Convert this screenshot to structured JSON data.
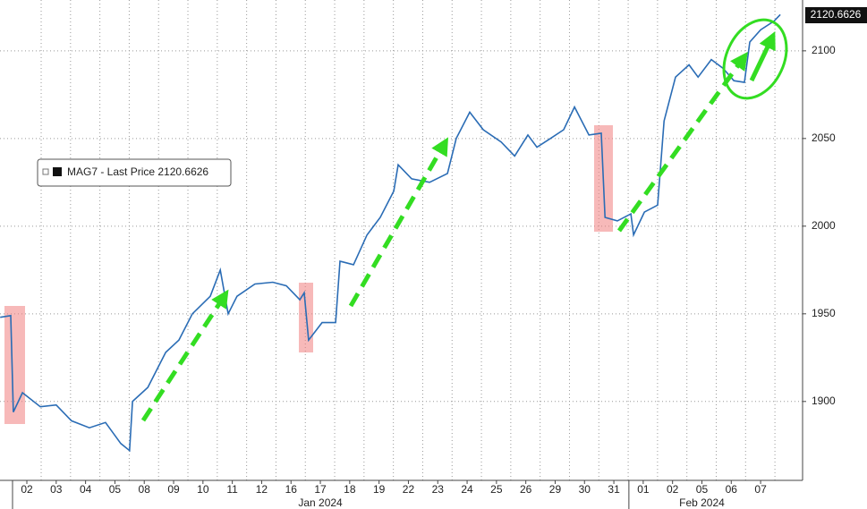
{
  "chart_data": {
    "type": "line",
    "series": [
      {
        "name": "MAG7 - Last Price 2120.6626",
        "color": "#2a6cb5",
        "x": [
          -0.91,
          -0.55,
          -0.46,
          -0.15,
          0.46,
          1.0,
          1.52,
          2.13,
          2.68,
          3.2,
          3.5,
          3.6,
          4.12,
          4.73,
          5.18,
          5.64,
          6.25,
          6.59,
          6.86,
          7.16,
          7.77,
          8.38,
          8.84,
          9.3,
          9.45,
          9.6,
          10.06,
          10.52,
          10.67,
          11.13,
          11.59,
          12.04,
          12.5,
          12.65,
          13.11,
          13.72,
          14.33,
          14.63,
          15.09,
          15.55,
          16.16,
          16.62,
          17.07,
          17.38,
          17.84,
          18.29,
          18.66,
          19.15,
          19.57,
          19.7,
          20.12,
          20.58,
          20.67,
          21.04,
          21.49,
          21.71,
          22.1,
          22.56,
          22.87,
          23.32,
          23.72,
          24.09,
          24.45,
          24.63,
          25.0,
          25.46,
          25.67
        ],
        "values": [
          1948,
          1949,
          1894,
          1905,
          1897,
          1898,
          1889,
          1885,
          1888,
          1876,
          1872,
          1900,
          1908,
          1928,
          1935,
          1950,
          1960,
          1975,
          1950,
          1960,
          1967,
          1968,
          1966,
          1958,
          1962,
          1935,
          1945,
          1945,
          1980,
          1978,
          1995,
          2005,
          2020,
          2035,
          2027,
          2025,
          2030,
          2050,
          2065,
          2055,
          2048,
          2040,
          2052,
          2045,
          2050,
          2055,
          2068,
          2052,
          2053,
          2005,
          2003,
          2007,
          1995,
          2008,
          2012,
          2060,
          2085,
          2092,
          2085,
          2095,
          2090,
          2083,
          2082,
          2105,
          2112,
          2117,
          2120.6626
        ]
      }
    ],
    "last_price": 2120.6626,
    "xlim": [
      -0.915,
      26.43
    ],
    "xticks": [
      {
        "value": 0,
        "label": "02"
      },
      {
        "value": 1,
        "label": "03"
      },
      {
        "value": 2,
        "label": "04"
      },
      {
        "value": 3,
        "label": "05"
      },
      {
        "value": 4,
        "label": "08"
      },
      {
        "value": 5,
        "label": "09"
      },
      {
        "value": 6,
        "label": "10"
      },
      {
        "value": 7,
        "label": "11"
      },
      {
        "value": 8,
        "label": "12"
      },
      {
        "value": 9,
        "label": "16"
      },
      {
        "value": 10,
        "label": "17"
      },
      {
        "value": 11,
        "label": "18"
      },
      {
        "value": 12,
        "label": "19"
      },
      {
        "value": 13,
        "label": "22"
      },
      {
        "value": 14,
        "label": "23"
      },
      {
        "value": 15,
        "label": "24"
      },
      {
        "value": 16,
        "label": "25"
      },
      {
        "value": 17,
        "label": "26"
      },
      {
        "value": 18,
        "label": "29"
      },
      {
        "value": 19,
        "label": "30"
      },
      {
        "value": 20,
        "label": "31"
      },
      {
        "value": 21,
        "label": "01"
      },
      {
        "value": 22,
        "label": "02"
      },
      {
        "value": 23,
        "label": "05"
      },
      {
        "value": 24,
        "label": "06"
      },
      {
        "value": 25,
        "label": "07"
      }
    ],
    "months": [
      "Jan 2024",
      "Feb 2024"
    ],
    "ylim": [
      1855,
      2129
    ],
    "yticks": [
      1900,
      1950,
      2000,
      2050,
      2100
    ],
    "grid": true
  }
}
